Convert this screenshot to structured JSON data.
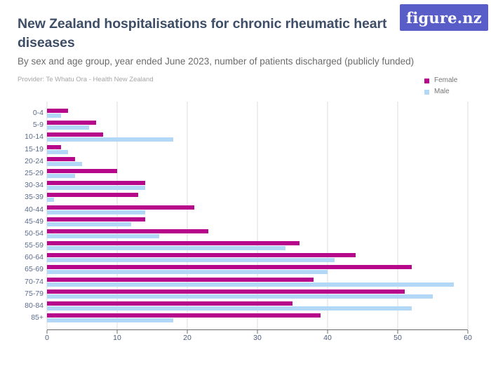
{
  "header": {
    "title": "New Zealand hospitalisations for chronic rheumatic heart diseases",
    "subtitle": "By sex and age group, year ended June 2023, number of patients discharged (publicly funded)",
    "provider": "Provider: Te Whatu Ora - Health New Zealand"
  },
  "logo": {
    "text": "figure.nz",
    "background_color": "#585dc7"
  },
  "legend": [
    {
      "label": "Female",
      "color": "#b7088c"
    },
    {
      "label": "Male",
      "color": "#b3d8f7"
    }
  ],
  "chart_data": {
    "type": "bar",
    "orientation": "horizontal",
    "title": "New Zealand hospitalisations for chronic rheumatic heart diseases",
    "subtitle": "By sex and age group, year ended June 2023, number of patients discharged (publicly funded)",
    "xlabel": "",
    "ylabel": "",
    "categories": [
      "0-4",
      "5-9",
      "10-14",
      "15-19",
      "20-24",
      "25-29",
      "30-34",
      "35-39",
      "40-44",
      "45-49",
      "50-54",
      "55-59",
      "60-64",
      "65-69",
      "70-74",
      "75-79",
      "80-84",
      "85+"
    ],
    "series": [
      {
        "name": "Female",
        "color": "#b7088c",
        "values": [
          3,
          7,
          8,
          2,
          4,
          10,
          14,
          13,
          21,
          14,
          23,
          36,
          44,
          52,
          38,
          51,
          35,
          39
        ]
      },
      {
        "name": "Male",
        "color": "#b3d8f7",
        "values": [
          2,
          6,
          18,
          3,
          5,
          4,
          14,
          1,
          14,
          12,
          16,
          34,
          41,
          40,
          58,
          55,
          52,
          18
        ]
      }
    ],
    "xlim": [
      0,
      60
    ],
    "xticks": [
      0,
      10,
      20,
      30,
      40,
      50,
      60
    ],
    "grid": "vertical",
    "gridline_color": "#dcdcdc",
    "legend_position": "top-right"
  }
}
